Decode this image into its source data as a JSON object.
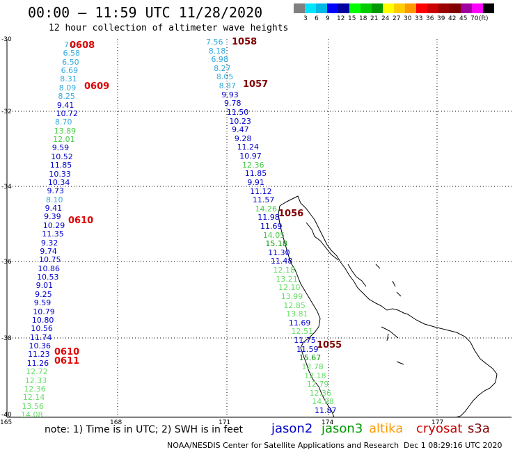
{
  "header": {
    "title": "00:00 – 11:59 UTC 11/28/2020",
    "subtitle": "12 hour collection of altimeter wave heights"
  },
  "colorbar": {
    "colors": [
      "#808080",
      "#00e5ff",
      "#00b8e6",
      "#0000ff",
      "#0000a0",
      "#00ff00",
      "#00cc00",
      "#009900",
      "#ffff00",
      "#ffcc00",
      "#ff9900",
      "#ff0000",
      "#cc0000",
      "#990000",
      "#800000",
      "#a000a0",
      "#ff00ff",
      "#000000"
    ],
    "labels": [
      "3",
      "6",
      "9",
      "12",
      "15",
      "18",
      "21",
      "24",
      "27",
      "30",
      "33",
      "36",
      "39",
      "42",
      "45",
      "70",
      "(ft)"
    ]
  },
  "axes": {
    "lat_labels": [
      "-30",
      "-32",
      "-34",
      "-36",
      "-38",
      "-40"
    ],
    "lon_labels": [
      "165",
      "168",
      "171",
      "174",
      "177"
    ]
  },
  "track1": [
    {
      "v": "7.26",
      "c": "#33aadd"
    },
    {
      "v": "6.58",
      "c": "#33aadd"
    },
    {
      "v": "6.50",
      "c": "#33aadd"
    },
    {
      "v": "6.69",
      "c": "#33aadd"
    },
    {
      "v": "8.31",
      "c": "#33aadd"
    },
    {
      "v": "8.09",
      "c": "#33aadd"
    },
    {
      "v": "8.25",
      "c": "#33aadd"
    },
    {
      "v": "9.41",
      "c": "#0000cc"
    },
    {
      "v": "10.72",
      "c": "#0000cc"
    },
    {
      "v": "8.70",
      "c": "#33aadd"
    },
    {
      "v": "13.89",
      "c": "#44cc44"
    },
    {
      "v": "12.01",
      "c": "#44cc44"
    },
    {
      "v": "9.59",
      "c": "#0000cc"
    },
    {
      "v": "10.52",
      "c": "#0000cc"
    },
    {
      "v": "11.85",
      "c": "#0000cc"
    },
    {
      "v": "10.33",
      "c": "#0000cc"
    },
    {
      "v": "10.34",
      "c": "#0000cc"
    },
    {
      "v": "9.73",
      "c": "#0000cc"
    },
    {
      "v": "8.10",
      "c": "#33aadd"
    },
    {
      "v": "9.41",
      "c": "#0000cc"
    },
    {
      "v": "9.39",
      "c": "#0000cc"
    },
    {
      "v": "10.29",
      "c": "#0000cc"
    },
    {
      "v": "11.35",
      "c": "#0000cc"
    },
    {
      "v": "9.32",
      "c": "#0000cc"
    },
    {
      "v": "9.74",
      "c": "#0000cc"
    },
    {
      "v": "10.75",
      "c": "#0000cc"
    },
    {
      "v": "10.86",
      "c": "#0000cc"
    },
    {
      "v": "10.53",
      "c": "#0000cc"
    },
    {
      "v": "9.01",
      "c": "#0000cc"
    },
    {
      "v": "9.25",
      "c": "#0000cc"
    },
    {
      "v": "9.59",
      "c": "#0000cc"
    },
    {
      "v": "10.79",
      "c": "#0000cc"
    },
    {
      "v": "10.80",
      "c": "#0000cc"
    },
    {
      "v": "10.56",
      "c": "#0000cc"
    },
    {
      "v": "11.74",
      "c": "#0000cc"
    },
    {
      "v": "10.36",
      "c": "#0000cc"
    },
    {
      "v": "11.23",
      "c": "#0000cc"
    },
    {
      "v": "11.26",
      "c": "#0000cc"
    },
    {
      "v": "12.72",
      "c": "#66dd66"
    },
    {
      "v": "12.33",
      "c": "#66dd66"
    },
    {
      "v": "12.36",
      "c": "#66dd66"
    },
    {
      "v": "12.14",
      "c": "#66dd66"
    },
    {
      "v": "13.56",
      "c": "#66dd66"
    },
    {
      "v": "14.08",
      "c": "#66dd66"
    }
  ],
  "track2": [
    {
      "v": "7.56",
      "c": "#33aadd"
    },
    {
      "v": "8.18",
      "c": "#33aadd"
    },
    {
      "v": "6.98",
      "c": "#33aadd"
    },
    {
      "v": "8.27",
      "c": "#33aadd"
    },
    {
      "v": "8.05",
      "c": "#33aadd"
    },
    {
      "v": "8.87",
      "c": "#33aadd"
    },
    {
      "v": "9.93",
      "c": "#0000cc"
    },
    {
      "v": "9.78",
      "c": "#0000cc"
    },
    {
      "v": "11.50",
      "c": "#0000cc"
    },
    {
      "v": "10.23",
      "c": "#0000cc"
    },
    {
      "v": "9.47",
      "c": "#0000cc"
    },
    {
      "v": "9.28",
      "c": "#0000cc"
    },
    {
      "v": "11.24",
      "c": "#0000cc"
    },
    {
      "v": "10.97",
      "c": "#0000cc"
    },
    {
      "v": "12.36",
      "c": "#44cc44"
    },
    {
      "v": "11.85",
      "c": "#0000cc"
    },
    {
      "v": "9.91",
      "c": "#0000cc"
    },
    {
      "v": "11.12",
      "c": "#0000cc"
    },
    {
      "v": "11.57",
      "c": "#0000cc"
    },
    {
      "v": "14.26",
      "c": "#44cc44"
    },
    {
      "v": "11.98",
      "c": "#0000cc"
    },
    {
      "v": "11.69",
      "c": "#0000cc"
    },
    {
      "v": "14.05",
      "c": "#44cc44"
    },
    {
      "v": "15.18",
      "c": "#009900"
    },
    {
      "v": "11.30",
      "c": "#0000cc"
    },
    {
      "v": "11.48",
      "c": "#0000cc"
    },
    {
      "v": "12.18",
      "c": "#66dd66"
    },
    {
      "v": "13.21",
      "c": "#66dd66"
    },
    {
      "v": "12.10",
      "c": "#66dd66"
    },
    {
      "v": "13.99",
      "c": "#66dd66"
    },
    {
      "v": "12.85",
      "c": "#66dd66"
    },
    {
      "v": "13.81",
      "c": "#66dd66"
    },
    {
      "v": "11.69",
      "c": "#0000cc"
    },
    {
      "v": "12.51",
      "c": "#66dd66"
    },
    {
      "v": "11.75",
      "c": "#0000cc"
    },
    {
      "v": "11.59",
      "c": "#0000cc"
    },
    {
      "v": "15.67",
      "c": "#009900"
    },
    {
      "v": "12.78",
      "c": "#66dd66"
    },
    {
      "v": "12.18",
      "c": "#66dd66"
    },
    {
      "v": "12.79",
      "c": "#66dd66"
    },
    {
      "v": "12.36",
      "c": "#66dd66"
    },
    {
      "v": "14.98",
      "c": "#66dd66"
    },
    {
      "v": "11.87",
      "c": "#0000cc"
    }
  ],
  "time_labels": {
    "t0608": "0608",
    "t0609": "0609",
    "t0610a": "0610",
    "t0610b": "0610",
    "t0611": "0611",
    "t1058": "1058",
    "t1057": "1057",
    "t1056": "1056",
    "t1055": "1055"
  },
  "footer": {
    "note": "note:  1) Time is in UTC;  2) SWH is in feet",
    "legend": [
      "jason2",
      "jason3",
      "altika",
      "cryosat",
      "s3a"
    ],
    "legend_colors": [
      "#0000cc",
      "#009900",
      "#ff9900",
      "#cc0000",
      "#800000"
    ],
    "credit": "NOAA/NESDIS Center for Satellite Applications and Research",
    "date": "Dec  1 08:29:16 UTC 2020"
  }
}
